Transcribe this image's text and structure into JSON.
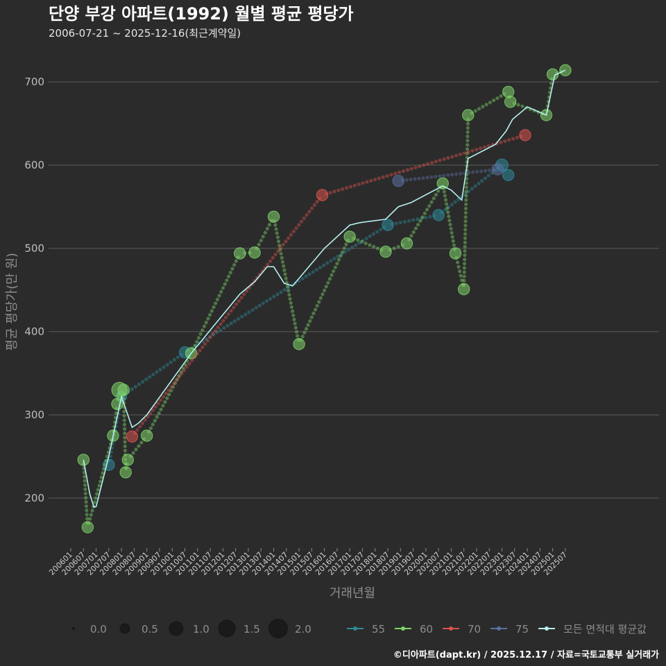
{
  "chart_data": {
    "type": "line",
    "title": "단양 부강 아파트(1992) 월별 평균 평당가",
    "subtitle": "2006-07-21 ~ 2025-12-16(최근계약일)",
    "xlabel": "거래년월",
    "ylabel": "평균 평당가(만 원)",
    "ylim": [
      140,
      740
    ],
    "y_ticks": [
      200,
      300,
      400,
      500,
      600,
      700
    ],
    "x_ticks": [
      "200601",
      "200607",
      "200701",
      "200707",
      "200801",
      "200807",
      "200901",
      "200907",
      "201001",
      "201007",
      "201101",
      "201107",
      "201201",
      "201207",
      "201301",
      "201307",
      "201401",
      "201407",
      "201501",
      "201507",
      "201601",
      "201607",
      "201701",
      "201707",
      "201801",
      "201807",
      "201901",
      "201907",
      "202001",
      "202007",
      "202101",
      "202107",
      "202201",
      "202207",
      "202301",
      "202307",
      "202401",
      "202407",
      "202501",
      "202507"
    ],
    "grid": true,
    "series": [
      {
        "name": "55",
        "color": "#2e8a9a",
        "points": [
          [
            "2007-07",
            240,
            0.6
          ],
          [
            "2008-01",
            322,
            0.5
          ],
          [
            "2010-07",
            375,
            0.6
          ],
          [
            "2018-07",
            528,
            0.6
          ],
          [
            "2020-07",
            540,
            0.6
          ],
          [
            "2023-01",
            600,
            0.7
          ],
          [
            "2023-04",
            588,
            0.6
          ]
        ]
      },
      {
        "name": "60",
        "color": "#7fd46a",
        "points": [
          [
            "2006-07",
            246,
            0.6
          ],
          [
            "2006-09",
            165,
            0.6
          ],
          [
            "2007-09",
            275,
            0.6
          ],
          [
            "2007-11",
            313,
            0.6
          ],
          [
            "2007-12",
            330,
            1.0
          ],
          [
            "2008-02",
            330,
            0.6
          ],
          [
            "2008-03",
            231,
            0.6
          ],
          [
            "2008-04",
            246,
            0.6
          ],
          [
            "2009-01",
            275,
            0.6
          ],
          [
            "2010-10",
            374,
            0.6
          ],
          [
            "2012-09",
            494,
            0.6
          ],
          [
            "2013-04",
            495,
            0.6
          ],
          [
            "2014-01",
            538,
            0.6
          ],
          [
            "2015-01",
            385,
            0.6
          ],
          [
            "2017-01",
            514,
            0.6
          ],
          [
            "2018-06",
            496,
            0.6
          ],
          [
            "2019-04",
            506,
            0.6
          ],
          [
            "2020-09",
            578,
            0.6
          ],
          [
            "2021-03",
            494,
            0.6
          ],
          [
            "2021-07",
            451,
            0.6
          ],
          [
            "2021-09",
            660,
            0.6
          ],
          [
            "2023-04",
            688,
            0.6
          ],
          [
            "2023-05",
            676,
            0.6
          ],
          [
            "2024-10",
            660,
            0.6
          ],
          [
            "2025-01",
            709,
            0.6
          ],
          [
            "2025-07",
            714,
            0.6
          ]
        ]
      },
      {
        "name": "70",
        "color": "#d9534f",
        "points": [
          [
            "2008-06",
            274,
            0.6
          ],
          [
            "2015-12",
            564,
            0.6
          ],
          [
            "2023-12",
            636,
            0.6
          ]
        ]
      },
      {
        "name": "75",
        "color": "#5b6fa0",
        "points": [
          [
            "2018-12",
            581,
            0.6
          ],
          [
            "2022-11",
            595,
            0.6
          ]
        ]
      }
    ],
    "average_line": {
      "name": "모든 면적대 평균값",
      "color": "#b6f0ee",
      "points": [
        [
          "2006-07",
          246
        ],
        [
          "2006-10",
          205
        ],
        [
          "2006-12",
          189
        ],
        [
          "2007-01",
          190
        ],
        [
          "2007-07",
          250
        ],
        [
          "2008-01",
          322
        ],
        [
          "2008-06",
          285
        ],
        [
          "2008-09",
          290
        ],
        [
          "2009-01",
          300
        ],
        [
          "2010-10",
          374
        ],
        [
          "2012-09",
          445
        ],
        [
          "2013-04",
          460
        ],
        [
          "2013-10",
          478
        ],
        [
          "2014-01",
          478
        ],
        [
          "2014-06",
          458
        ],
        [
          "2014-10",
          455
        ],
        [
          "2016-01",
          500
        ],
        [
          "2017-01",
          528
        ],
        [
          "2017-06",
          531
        ],
        [
          "2018-06",
          535
        ],
        [
          "2018-12",
          550
        ],
        [
          "2019-06",
          555
        ],
        [
          "2020-09",
          575
        ],
        [
          "2021-01",
          570
        ],
        [
          "2021-06",
          558
        ],
        [
          "2021-09",
          608
        ],
        [
          "2022-10",
          625
        ],
        [
          "2023-03",
          641
        ],
        [
          "2023-06",
          655
        ],
        [
          "2024-01",
          670
        ],
        [
          "2024-10",
          660
        ],
        [
          "2025-02",
          708
        ],
        [
          "2025-07",
          714
        ]
      ]
    },
    "size_legend": {
      "title": "",
      "values": [
        "0.0",
        "0.5",
        "1.0",
        "1.5",
        "2.0"
      ]
    },
    "color_legend": [
      "55",
      "60",
      "70",
      "75",
      "모든 면적대 평균값"
    ],
    "footer": "©디아파트(dapt.kr) / 2025.12.17 / 자료=국토교통부 실거래가"
  }
}
